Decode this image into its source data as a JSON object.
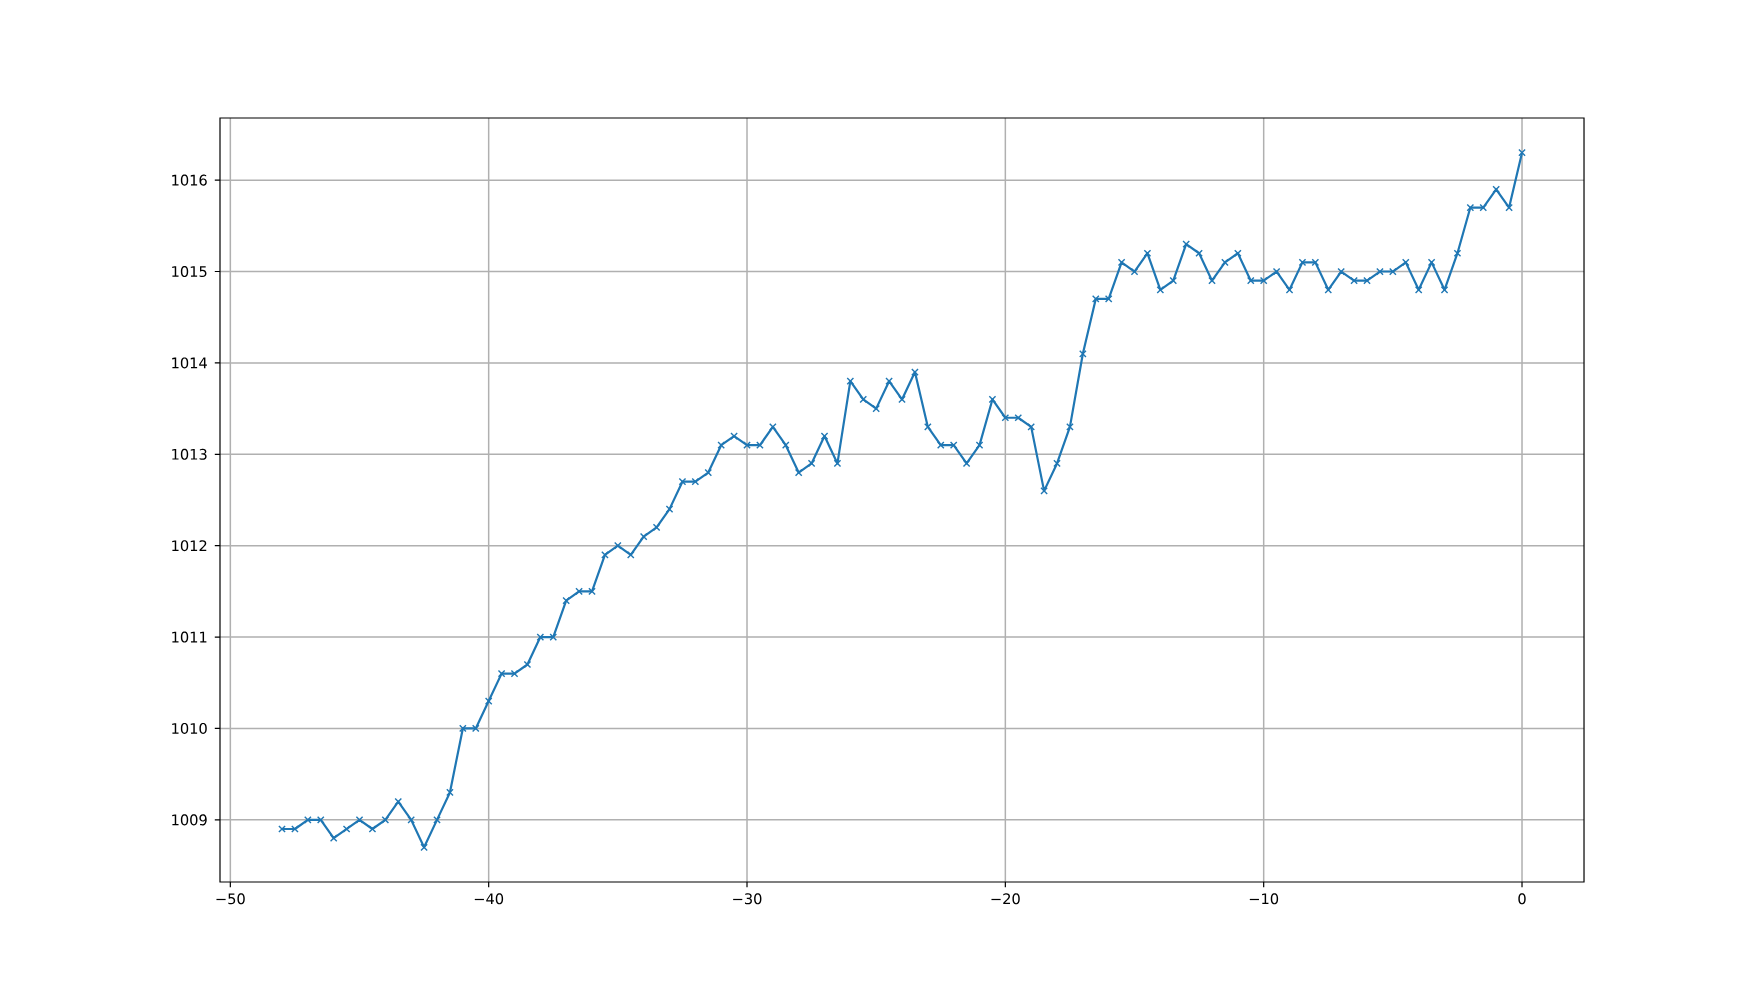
{
  "chart_data": {
    "type": "line",
    "x": [
      -48,
      -47.5,
      -47,
      -46.5,
      -46,
      -45.5,
      -45,
      -44.5,
      -44,
      -43.5,
      -43,
      -42.5,
      -42,
      -41.5,
      -41,
      -40.5,
      -40,
      -39.5,
      -39,
      -38.5,
      -38,
      -37.5,
      -37,
      -36.5,
      -36,
      -35.5,
      -35,
      -34.5,
      -34,
      -33.5,
      -33,
      -32.5,
      -32,
      -31.5,
      -31,
      -30.5,
      -30,
      -29.5,
      -29,
      -28.5,
      -28,
      -27.5,
      -27,
      -26.5,
      -26,
      -25.5,
      -25,
      -24.5,
      -24,
      -23.5,
      -23,
      -22.5,
      -22,
      -21.5,
      -21,
      -20.5,
      -20,
      -19.5,
      -19,
      -18.5,
      -18,
      -17.5,
      -17,
      -16.5,
      -16,
      -15.5,
      -15,
      -14.5,
      -14,
      -13.5,
      -13,
      -12.5,
      -12,
      -11.5,
      -11,
      -10.5,
      -10,
      -9.5,
      -9,
      -8.5,
      -8,
      -7.5,
      -7,
      -6.5,
      -6,
      -5.5,
      -5,
      -4.5,
      -4,
      -3.5,
      -3,
      -2.5,
      -2,
      -1.5,
      -1,
      -0.5,
      0
    ],
    "values": [
      1008.9,
      1008.9,
      1009.0,
      1009.0,
      1008.8,
      1008.9,
      1009.0,
      1008.9,
      1009.0,
      1009.2,
      1009.0,
      1008.7,
      1009.0,
      1009.3,
      1010.0,
      1010.0,
      1010.3,
      1010.6,
      1010.6,
      1010.7,
      1011.0,
      1011.0,
      1011.4,
      1011.5,
      1011.5,
      1011.9,
      1012.0,
      1011.9,
      1012.1,
      1012.2,
      1012.4,
      1012.7,
      1012.7,
      1012.8,
      1013.1,
      1013.2,
      1013.1,
      1013.1,
      1013.3,
      1013.1,
      1012.8,
      1012.9,
      1013.2,
      1012.9,
      1013.8,
      1013.6,
      1013.5,
      1013.8,
      1013.6,
      1013.9,
      1013.3,
      1013.1,
      1013.1,
      1012.9,
      1013.1,
      1013.6,
      1013.4,
      1013.4,
      1013.3,
      1012.6,
      1012.9,
      1013.3,
      1014.1,
      1014.7,
      1014.7,
      1015.1,
      1015.0,
      1015.2,
      1014.8,
      1014.9,
      1015.3,
      1015.2,
      1014.9,
      1015.1,
      1015.2,
      1014.9,
      1014.9,
      1015.0,
      1014.8,
      1015.1,
      1015.1,
      1014.8,
      1015.0,
      1014.9,
      1014.9,
      1015.0,
      1015.0,
      1015.1,
      1014.8,
      1015.1,
      1014.8,
      1015.2,
      1015.7,
      1015.7,
      1015.9,
      1015.7,
      1016.3
    ],
    "color": "#1f77b4",
    "marker": "cross",
    "xlim": [
      -50.4,
      2.4
    ],
    "ylim": [
      1008.32,
      1016.68
    ],
    "xticks": [
      {
        "value": -50,
        "label": "−50"
      },
      {
        "value": -40,
        "label": "−40"
      },
      {
        "value": -30,
        "label": "−30"
      },
      {
        "value": -20,
        "label": "−20"
      },
      {
        "value": -10,
        "label": "−10"
      },
      0
    ],
    "yticks": [
      1009,
      1010,
      1011,
      1012,
      1013,
      1014,
      1015,
      1016
    ],
    "grid": true
  }
}
